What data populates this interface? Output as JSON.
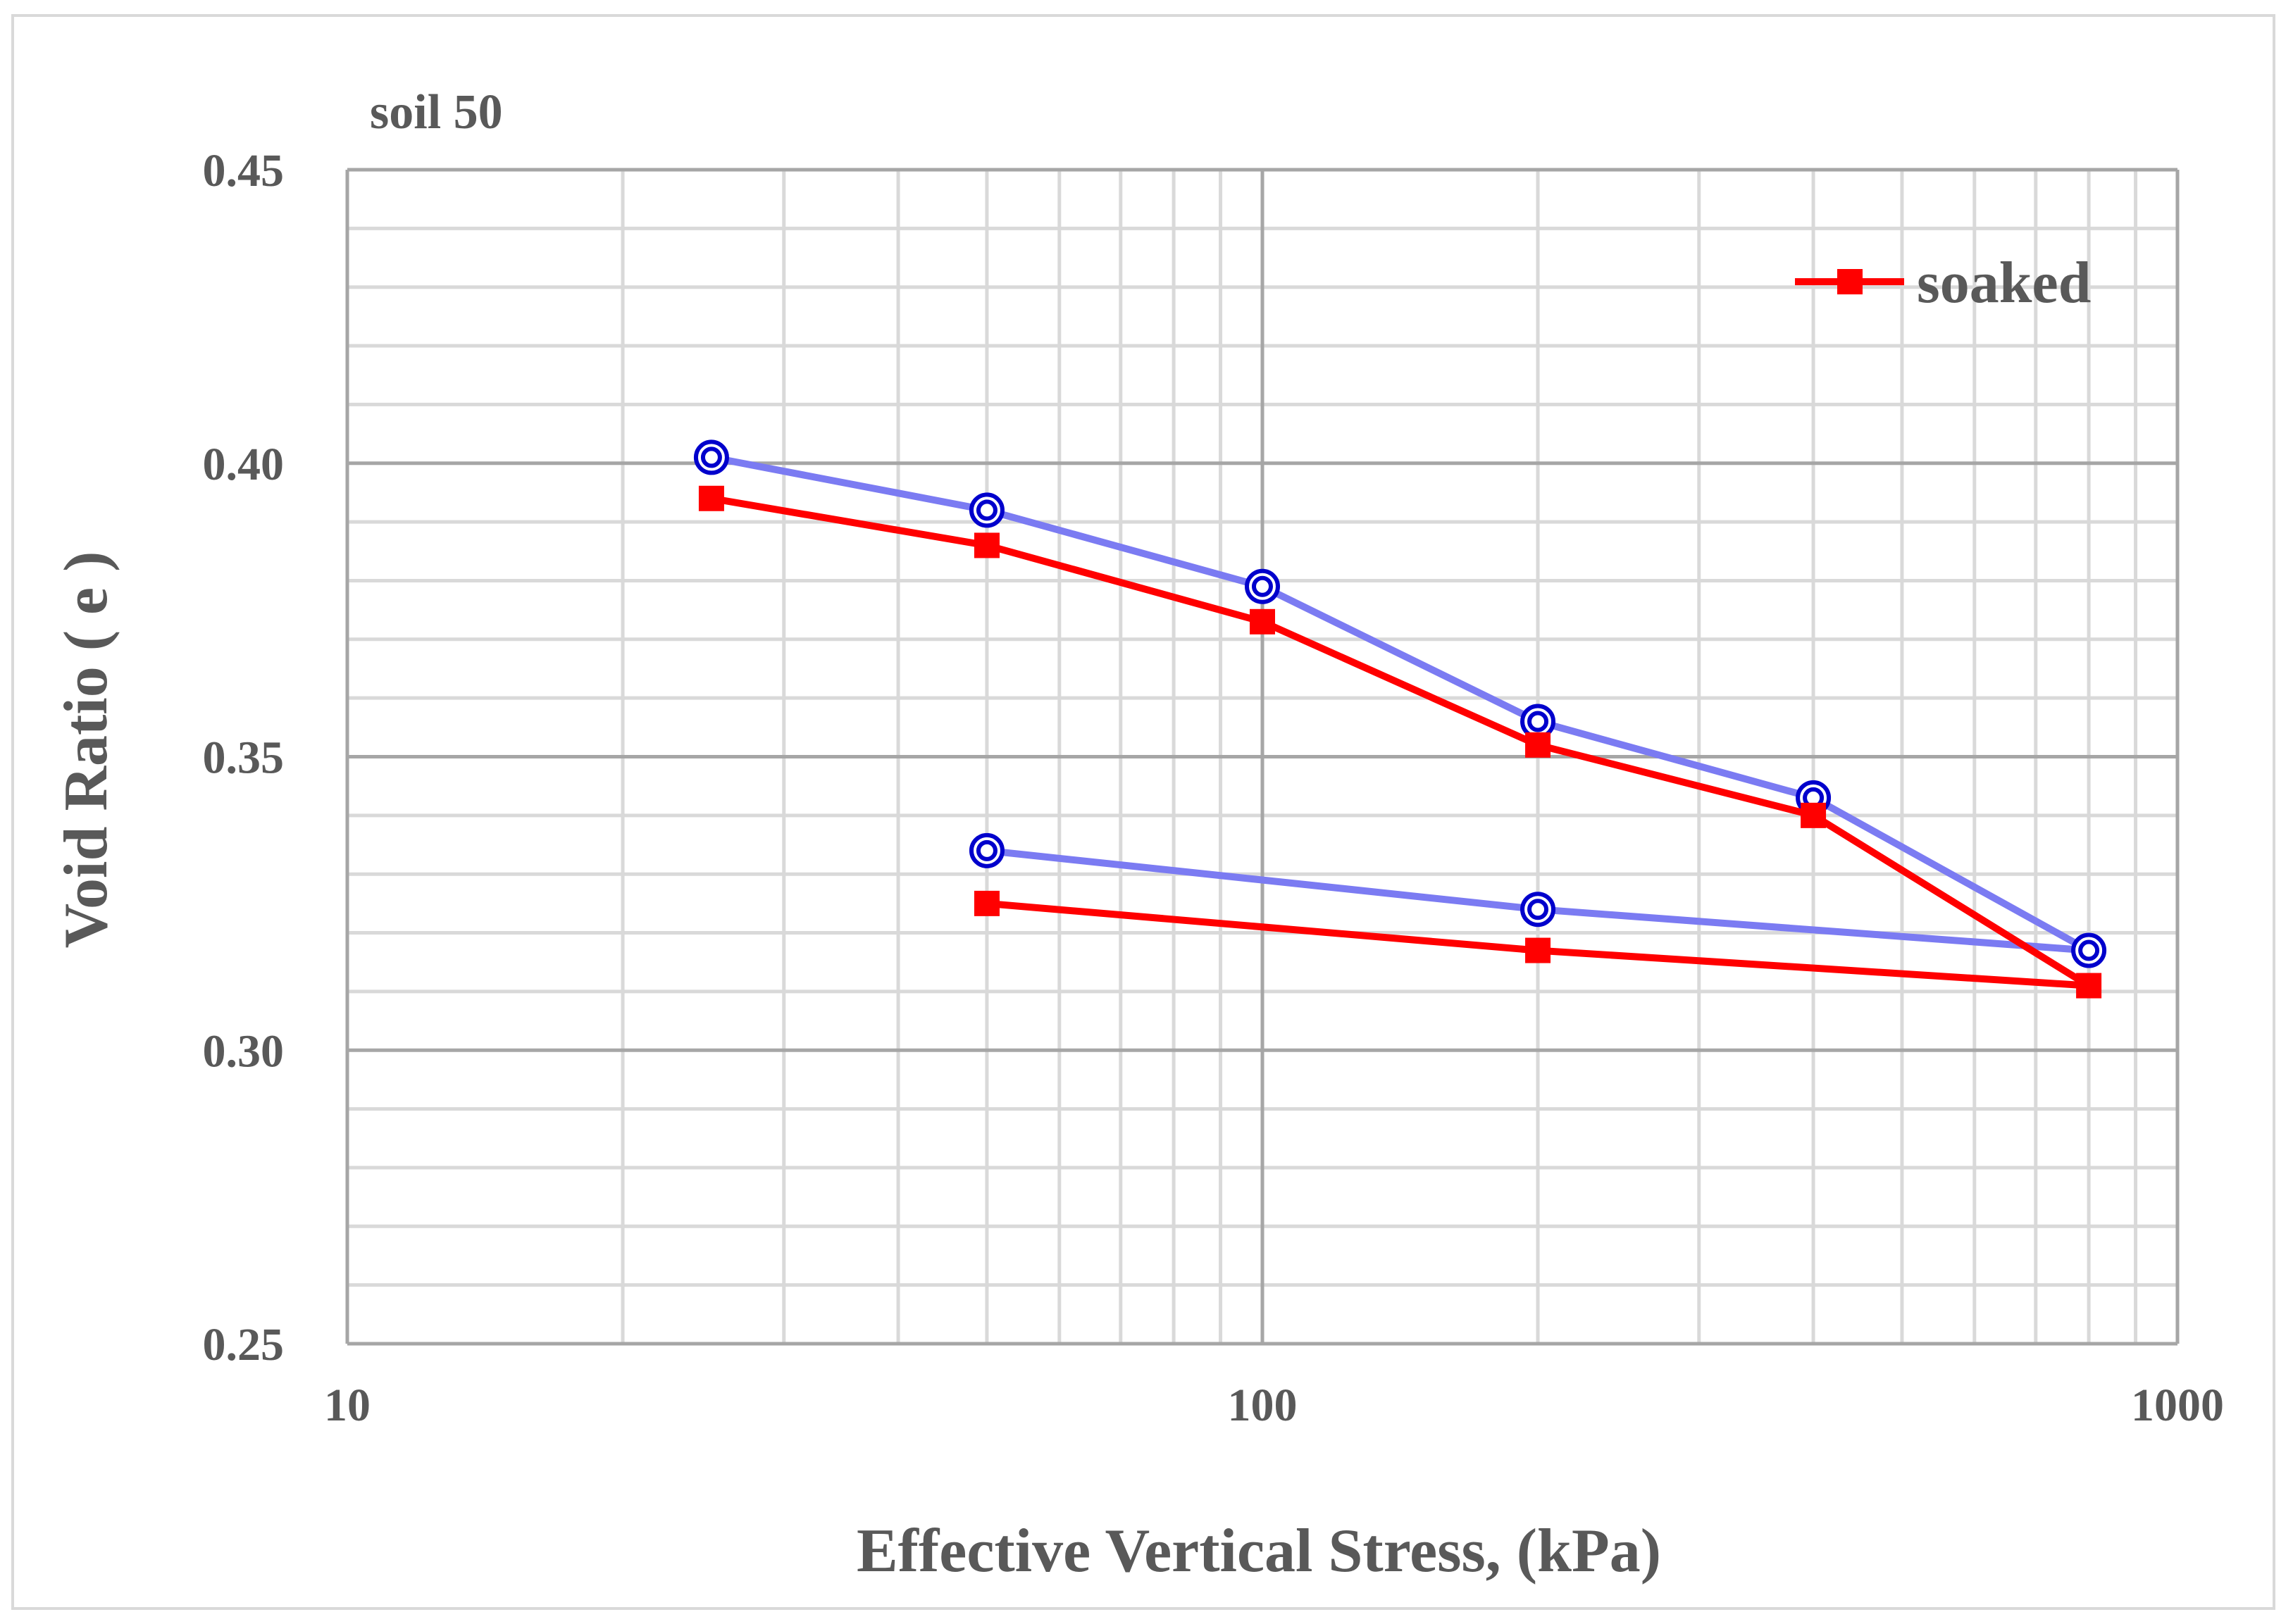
{
  "chart_data": {
    "type": "line",
    "title": "soil 50",
    "xlabel": "Effective Vertical Stress, (kPa)",
    "ylabel": "Void Ratio ( e )",
    "xscale": "log",
    "xlim": [
      10,
      1000
    ],
    "ylim": [
      0.25,
      0.45
    ],
    "xticks": [
      10,
      100,
      1000
    ],
    "xtick_labels": [
      "10",
      "100",
      "1000"
    ],
    "yticks": [
      0.25,
      0.3,
      0.35,
      0.4,
      0.45
    ],
    "ytick_labels": [
      "0.25",
      "0.30",
      "0.35",
      "0.40",
      "0.45"
    ],
    "grid": true,
    "legend_position": "top-right",
    "series": [
      {
        "name": "",
        "show_in_legend": false,
        "color": "#7b7bf2",
        "marker": "double-circle",
        "marker_color": "#0000cc",
        "x": [
          25,
          50,
          100,
          200,
          400,
          800,
          200,
          50
        ],
        "y": [
          0.401,
          0.392,
          0.379,
          0.356,
          0.343,
          0.317,
          0.324,
          0.334
        ]
      },
      {
        "name": "soaked",
        "show_in_legend": true,
        "color": "#ff0000",
        "marker": "square",
        "marker_color": "#ff0000",
        "x": [
          25,
          50,
          100,
          200,
          400,
          800,
          200,
          50
        ],
        "y": [
          0.394,
          0.386,
          0.373,
          0.352,
          0.34,
          0.311,
          0.317,
          0.325
        ]
      }
    ]
  }
}
